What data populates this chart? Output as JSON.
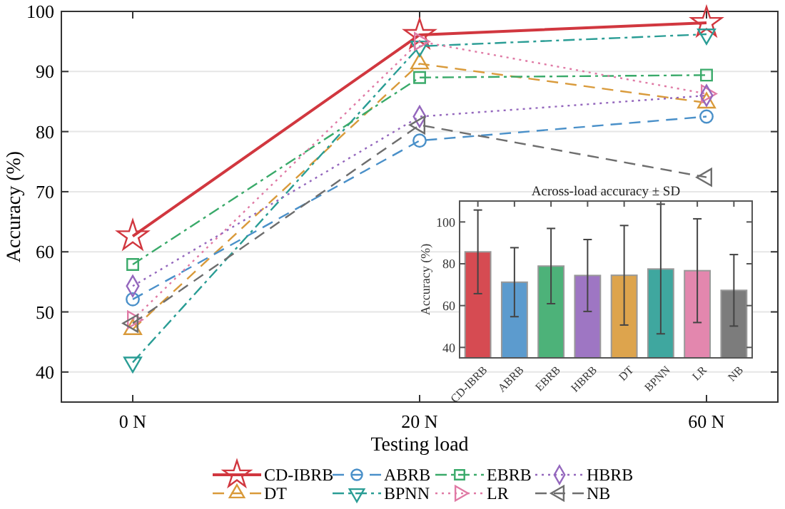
{
  "chart_data": [
    {
      "type": "line",
      "xlabel": "Testing load",
      "ylabel": "Accuracy (%)",
      "categories": [
        "0 N",
        "20 N",
        "60 N"
      ],
      "ylim": [
        35,
        100
      ],
      "yticks": [
        40,
        50,
        60,
        70,
        80,
        90,
        100
      ],
      "grid": "y",
      "legend": "bottom",
      "series": [
        {
          "name": "CD-IBRB",
          "color": "#d1373f",
          "values": [
            62.6,
            96.1,
            98.1
          ],
          "marker": "star",
          "line_style": "solid"
        },
        {
          "name": "DT",
          "color": "#d99a3a",
          "values": [
            47.1,
            91.3,
            84.8
          ],
          "marker": "triangle",
          "line_style": "dashed"
        },
        {
          "name": "ABRB",
          "color": "#4a90c9",
          "values": [
            52.1,
            78.5,
            82.5
          ],
          "marker": "circle",
          "line_style": "dashed"
        },
        {
          "name": "BPNN",
          "color": "#2a9d95",
          "values": [
            41.6,
            94.2,
            96.2
          ],
          "marker": "triangle-down",
          "line_style": "dashdot"
        },
        {
          "name": "EBRB",
          "color": "#3aaa6a",
          "values": [
            57.9,
            89,
            89.4
          ],
          "marker": "square",
          "line_style": "dashdot"
        },
        {
          "name": "LR",
          "color": "#e07aa5",
          "values": [
            48.7,
            95,
            86.3
          ],
          "marker": "triangle-right",
          "line_style": "dotted"
        },
        {
          "name": "HBRB",
          "color": "#9467bd",
          "values": [
            54.3,
            82.5,
            86
          ],
          "marker": "diamond",
          "line_style": "dotted"
        },
        {
          "name": "NB",
          "color": "#6e6e6e",
          "values": [
            48.1,
            81.1,
            72.4
          ],
          "marker": "triangle-left",
          "line_style": "dashed"
        }
      ]
    },
    {
      "type": "bar",
      "title": "Across-load accuracy ± SD",
      "ylabel": "Accuracy (%)",
      "categories": [
        "CD-IBRB",
        "ABRB",
        "EBRB",
        "HBRB",
        "DT",
        "BPNN",
        "LR",
        "NB"
      ],
      "values": [
        85.7,
        71.2,
        78.9,
        74.4,
        74.5,
        77.5,
        76.7,
        67.3
      ],
      "errors": [
        20,
        16.5,
        18,
        17.2,
        23.8,
        31,
        24.8,
        17.1
      ],
      "colors": [
        "#d1373f",
        "#4a90c9",
        "#3aaa6a",
        "#9467bd",
        "#d99a3a",
        "#2a9d95",
        "#e07aa5",
        "#6e6e6e"
      ],
      "ylim": [
        35,
        110
      ],
      "yticks": [
        40,
        60,
        80,
        100
      ]
    }
  ]
}
